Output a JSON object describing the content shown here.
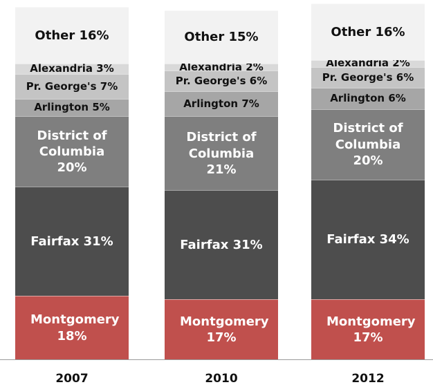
{
  "chart_data": {
    "type": "stacked_bar",
    "categories": [
      "2007",
      "2010",
      "2012"
    ],
    "series": [
      {
        "name": "Montgomery",
        "color": "#c0504d",
        "values": [
          18,
          17,
          17
        ],
        "value_labels": [
          "18%",
          "17%",
          "17%"
        ]
      },
      {
        "name": "Fairfax",
        "color": "#4d4d4d",
        "values": [
          31,
          31,
          34
        ],
        "value_labels": [
          "31%",
          "31%",
          "34%"
        ]
      },
      {
        "name": "District of Columbia",
        "color": "#7f7f7f",
        "values": [
          20,
          21,
          20
        ],
        "value_labels": [
          "20%",
          "21%",
          "20%"
        ]
      },
      {
        "name": "Arlington",
        "color": "#a6a6a6",
        "values": [
          5,
          7,
          6
        ],
        "value_labels": [
          "5%",
          "7%",
          "6%"
        ]
      },
      {
        "name": "Pr. George's",
        "color": "#c4c4c4",
        "values": [
          7,
          6,
          6
        ],
        "value_labels": [
          "7%",
          "6%",
          "6%"
        ]
      },
      {
        "name": "Alexandria",
        "color": "#d9d9d9",
        "values": [
          3,
          2,
          2
        ],
        "value_labels": [
          "3%",
          "2%",
          "2%"
        ]
      },
      {
        "name": "Other",
        "color": "#f2f2f2",
        "values": [
          16,
          15,
          16
        ],
        "value_labels": [
          "16%",
          "15%",
          "16%"
        ]
      }
    ]
  }
}
